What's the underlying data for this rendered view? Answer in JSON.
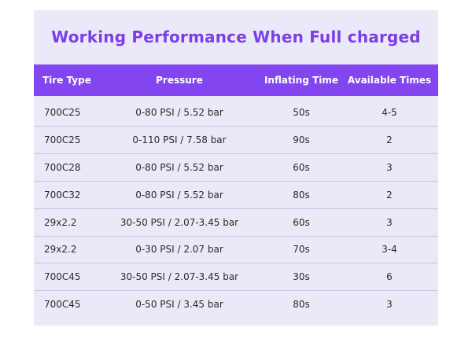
{
  "title": "Working Performance When Full charged",
  "table": {
    "headers": [
      "Tire Type",
      "Pressure",
      "Inflating Time",
      "Available Times"
    ],
    "rows": [
      [
        "700C25",
        "0-80 PSI / 5.52 bar",
        "50s",
        "4-5"
      ],
      [
        "700C25",
        "0-110 PSI / 7.58 bar",
        "90s",
        "2"
      ],
      [
        "700C28",
        "0-80 PSI / 5.52 bar",
        "60s",
        "3"
      ],
      [
        "700C32",
        "0-80 PSI / 5.52 bar",
        "80s",
        "2"
      ],
      [
        "29x2.2",
        "30-50 PSI / 2.07-3.45 bar",
        "60s",
        "3"
      ],
      [
        "29x2.2",
        "0-30 PSI / 2.07 bar",
        "70s",
        "3-4"
      ],
      [
        "700C45",
        "30-50 PSI / 2.07-3.45 bar",
        "30s",
        "6"
      ],
      [
        "700C45",
        "0-50 PSI / 3.45 bar",
        "80s",
        "3"
      ]
    ]
  },
  "colors": {
    "accent": "#8245f0",
    "title": "#7a3fe6",
    "card_background": "#ebe9f8",
    "divider": "#c8c4e2"
  }
}
